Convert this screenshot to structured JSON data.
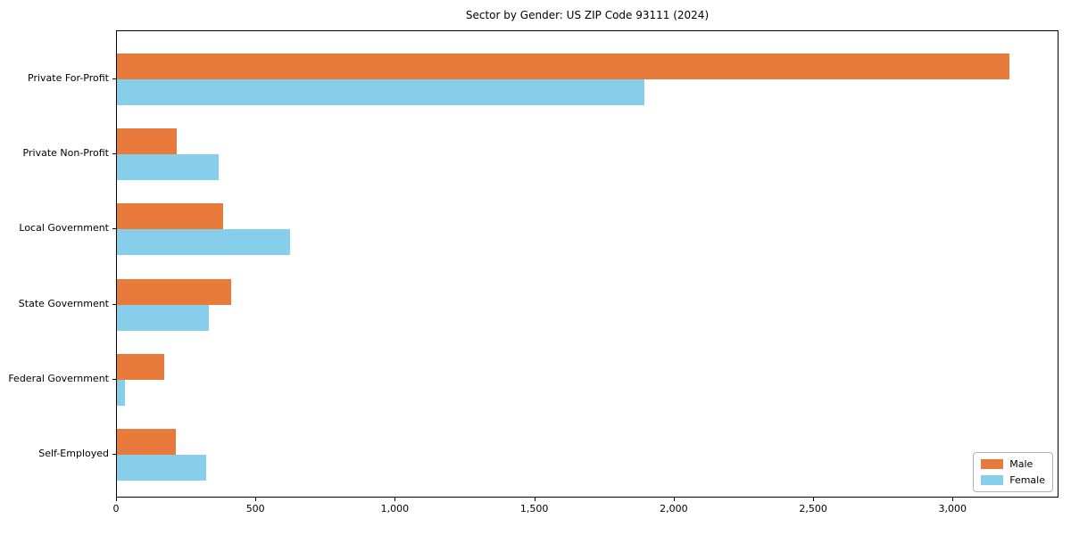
{
  "chart_data": {
    "type": "bar",
    "orientation": "horizontal",
    "title": "Sector by Gender: US ZIP Code 93111 (2024)",
    "categories": [
      "Private For-Profit",
      "Private Non-Profit",
      "Local Government",
      "State Government",
      "Federal Government",
      "Self-Employed"
    ],
    "series": [
      {
        "name": "Male",
        "color": "#E87A3C",
        "values": [
          3200,
          215,
          380,
          410,
          170,
          210
        ]
      },
      {
        "name": "Female",
        "color": "#87CEEB",
        "values": [
          1890,
          365,
          620,
          330,
          30,
          320
        ]
      }
    ],
    "xlim": [
      0,
      3380
    ],
    "xticks": [
      0,
      500,
      1000,
      1500,
      2000,
      2500,
      3000
    ],
    "xtick_labels": [
      "0",
      "500",
      "1,000",
      "1,500",
      "2,000",
      "2,500",
      "3,000"
    ],
    "xlabel": "",
    "ylabel": "",
    "grid": false,
    "legend_position": "lower right",
    "bar_group_order": "male-above-female"
  }
}
